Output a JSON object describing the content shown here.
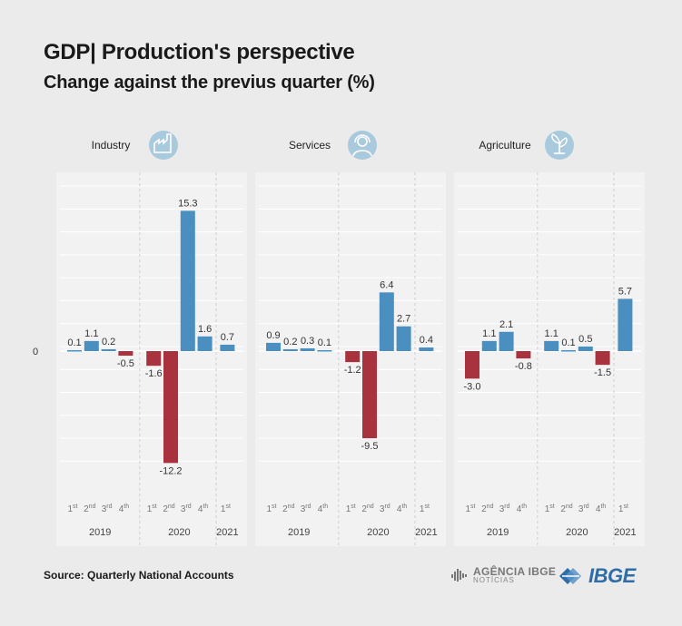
{
  "header": {
    "title": "GDP| Production's perspective",
    "subtitle": "Change against the previus quarter (%)"
  },
  "footer": {
    "source": "Source: Quarterly National Accounts",
    "agencia_line1": "AGÊNCIA IBGE",
    "agencia_line2": "NOTÍCIAS",
    "ibge_logo": "IBGE"
  },
  "colors": {
    "positive": "#4a8fbf",
    "negative": "#a8323e",
    "icon_bg": "#a9c9dd",
    "logo_blue": "#2f6da8"
  },
  "icons": [
    "factory-icon",
    "customer-service-icon",
    "plant-icon"
  ],
  "chart_data": {
    "type": "bar",
    "zero_label": "0",
    "ylim": [
      -13.5,
      18.5
    ],
    "grid": true,
    "legend": "none",
    "categories": [
      {
        "ord": "1",
        "sup": "st"
      },
      {
        "ord": "2",
        "sup": "nd"
      },
      {
        "ord": "3",
        "sup": "rd"
      },
      {
        "ord": "4",
        "sup": "th"
      },
      {
        "ord": "1",
        "sup": "st"
      },
      {
        "ord": "2",
        "sup": "nd"
      },
      {
        "ord": "3",
        "sup": "rd"
      },
      {
        "ord": "4",
        "sup": "th"
      },
      {
        "ord": "1",
        "sup": "st"
      }
    ],
    "years": [
      {
        "label": "2019",
        "start": 0,
        "end": 3
      },
      {
        "label": "2020",
        "start": 4,
        "end": 7
      },
      {
        "label": "2021",
        "start": 8,
        "end": 8
      }
    ],
    "series": [
      {
        "name": "Industry",
        "icon": "factory-icon",
        "values": [
          0.1,
          1.1,
          0.2,
          -0.5,
          -1.6,
          -12.2,
          15.3,
          1.6,
          0.7
        ],
        "labels": [
          "0.1",
          "1.1",
          "0.2",
          "-0.5",
          "-1.6",
          "-12.2",
          "15.3",
          "1.6",
          "0.7"
        ]
      },
      {
        "name": "Services",
        "icon": "customer-service-icon",
        "values": [
          0.9,
          0.2,
          0.3,
          0.1,
          -1.2,
          -9.5,
          6.4,
          2.7,
          0.4
        ],
        "labels": [
          "0.9",
          "0.2",
          "0.3",
          "0.1",
          "-1.2",
          "-9.5",
          "6.4",
          "2.7",
          "0.4"
        ]
      },
      {
        "name": "Agriculture",
        "icon": "plant-icon",
        "values": [
          -3.0,
          1.1,
          2.1,
          -0.8,
          1.1,
          0.1,
          0.5,
          -1.5,
          5.7
        ],
        "labels": [
          "-3.0",
          "1.1",
          "2.1",
          "-0.8",
          "1.1",
          "0.1",
          "0.5",
          "-1.5",
          "5.7"
        ]
      }
    ]
  }
}
